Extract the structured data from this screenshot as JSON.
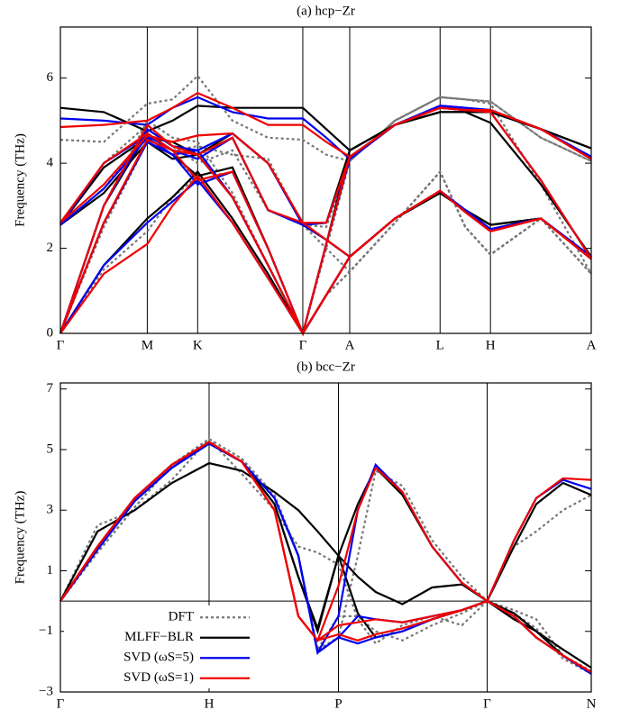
{
  "chart_data": [
    {
      "type": "line",
      "title": "(a) hcp−Zr",
      "ylabel": "Frequency (THz)",
      "x": [
        0,
        0.5,
        1,
        1.29,
        1.58,
        1.98,
        2.39,
        2.79,
        3.06,
        3.33,
        3.85,
        4.37,
        4.66,
        4.95,
        5.53,
        6.11
      ],
      "xlim": [
        0,
        6.11
      ],
      "xticks": [
        {
          "value": 0,
          "label": "Γ"
        },
        {
          "value": 1,
          "label": "M"
        },
        {
          "value": 1.58,
          "label": "K"
        },
        {
          "value": 2.79,
          "label": "Γ"
        },
        {
          "value": 3.33,
          "label": "A"
        },
        {
          "value": 4.37,
          "label": "L"
        },
        {
          "value": 4.95,
          "label": "H"
        },
        {
          "value": 6.11,
          "label": "A"
        }
      ],
      "ylim": [
        0,
        7.2
      ],
      "yticks": [
        0,
        2,
        4,
        6
      ],
      "xgrid": true,
      "series": [
        {
          "color": "#777777",
          "dash": "dotted",
          "branches": [
            [
              0,
              1.5,
              2.4,
              3.2,
              3.7,
              2.6,
              1.3,
              0,
              0.9,
              1.45,
              2.6,
              3.8,
              2.5,
              1.85,
              2.7,
              1.4
            ],
            [
              0,
              2.5,
              4.5,
              4.2,
              3.6,
              3.8,
              2.0,
              0,
              0.9,
              1.45,
              2.6,
              3.8,
              2.5,
              1.85,
              2.7,
              1.4
            ],
            [
              0,
              3.0,
              5.0,
              4.6,
              4.5,
              3.3,
              1.6,
              0,
              2.0,
              4.05,
              5.0,
              5.55,
              5.5,
              5.4,
              3.5,
              1.4
            ],
            [
              2.55,
              4.0,
              4.9,
              4.4,
              4.0,
              4.3,
              2.9,
              2.55,
              2.0,
              1.45,
              2.6,
              3.8,
              2.5,
              1.85,
              2.7,
              1.4
            ],
            [
              2.55,
              3.4,
              4.7,
              4.3,
              4.4,
              4.2,
              4.1,
              2.55,
              2.5,
              4.05,
              5.0,
              5.55,
              5.5,
              5.45,
              4.6,
              4.05
            ],
            [
              4.55,
              4.5,
              5.4,
              5.5,
              6.05,
              5.0,
              4.6,
              4.55,
              4.2,
              4.05,
              5.0,
              5.55,
              5.5,
              5.45,
              4.6,
              4.05
            ]
          ]
        },
        {
          "color": "#000000",
          "dash": "solid",
          "branches": [
            [
              0,
              1.6,
              2.7,
              3.2,
              3.8,
              2.7,
              1.4,
              0,
              0.9,
              1.8,
              2.7,
              3.3,
              2.9,
              2.55,
              2.7,
              1.8
            ],
            [
              0,
              2.6,
              4.5,
              4.2,
              3.7,
              3.9,
              2.0,
              0,
              0.9,
              1.8,
              2.7,
              3.3,
              2.9,
              2.55,
              2.7,
              1.8
            ],
            [
              0,
              3.0,
              4.7,
              4.3,
              4.2,
              3.2,
              1.6,
              0,
              2.1,
              4.3,
              4.9,
              5.2,
              5.2,
              4.95,
              3.5,
              1.8
            ],
            [
              2.55,
              3.9,
              4.6,
              4.5,
              4.2,
              4.6,
              2.9,
              2.55,
              2.2,
              1.8,
              2.7,
              3.3,
              2.9,
              2.55,
              2.7,
              1.8
            ],
            [
              2.55,
              3.3,
              4.5,
              4.1,
              4.2,
              4.7,
              4.0,
              2.55,
              2.6,
              4.3,
              4.9,
              5.2,
              5.2,
              5.2,
              4.8,
              4.35
            ],
            [
              5.3,
              5.2,
              4.75,
              5.0,
              5.35,
              5.3,
              5.3,
              5.3,
              4.8,
              4.3,
              4.9,
              5.2,
              5.2,
              5.2,
              4.8,
              4.35
            ]
          ]
        },
        {
          "color": "#0000ee",
          "dash": "solid",
          "branches": [
            [
              0,
              1.6,
              2.6,
              3.1,
              3.6,
              2.6,
              1.3,
              0,
              0.9,
              1.8,
              2.7,
              3.35,
              2.9,
              2.45,
              2.7,
              1.8
            ],
            [
              0,
              2.6,
              4.5,
              4.2,
              3.5,
              3.8,
              2.0,
              0,
              0.9,
              1.8,
              2.7,
              3.35,
              2.9,
              2.45,
              2.7,
              1.8
            ],
            [
              0,
              3.0,
              4.8,
              4.4,
              4.3,
              3.2,
              1.6,
              0,
              2.1,
              4.1,
              4.9,
              5.35,
              5.3,
              5.2,
              3.6,
              1.75
            ],
            [
              2.55,
              4.0,
              4.65,
              4.3,
              4.1,
              4.6,
              2.9,
              2.55,
              2.2,
              1.8,
              2.7,
              3.35,
              2.9,
              2.45,
              2.7,
              1.8
            ],
            [
              2.55,
              3.4,
              4.6,
              4.2,
              4.3,
              4.7,
              4.0,
              2.55,
              2.6,
              4.1,
              4.9,
              5.35,
              5.3,
              5.25,
              4.8,
              4.15
            ],
            [
              5.05,
              5.0,
              4.9,
              5.3,
              5.55,
              5.2,
              5.05,
              5.05,
              4.6,
              4.1,
              4.9,
              5.35,
              5.3,
              5.25,
              4.8,
              4.15
            ]
          ]
        },
        {
          "color": "#ee0000",
          "dash": "solid",
          "branches": [
            [
              0,
              1.4,
              2.1,
              3.0,
              3.7,
              2.6,
              1.3,
              0,
              0.9,
              1.8,
              2.7,
              3.35,
              2.85,
              2.4,
              2.7,
              1.75
            ],
            [
              0,
              2.6,
              4.55,
              4.3,
              3.6,
              3.8,
              2.0,
              0,
              0.9,
              1.8,
              2.7,
              3.35,
              2.85,
              2.4,
              2.7,
              1.75
            ],
            [
              0,
              3.0,
              4.9,
              4.4,
              4.2,
              3.2,
              1.6,
              0,
              2.1,
              4.15,
              4.9,
              5.3,
              5.25,
              5.2,
              3.6,
              1.75
            ],
            [
              2.6,
              4.0,
              4.7,
              4.3,
              4.2,
              4.6,
              2.9,
              2.6,
              2.2,
              1.8,
              2.7,
              3.35,
              2.85,
              2.4,
              2.7,
              1.75
            ],
            [
              2.6,
              3.5,
              4.65,
              4.5,
              4.65,
              4.7,
              4.0,
              2.6,
              2.6,
              4.15,
              4.9,
              5.3,
              5.25,
              5.25,
              4.8,
              4.1
            ],
            [
              4.85,
              4.9,
              5.0,
              5.3,
              5.65,
              5.3,
              4.9,
              4.9,
              4.5,
              4.15,
              4.9,
              5.3,
              5.25,
              5.25,
              4.8,
              4.1
            ]
          ]
        }
      ]
    },
    {
      "type": "line",
      "title": "(b) bcc−Zr",
      "ylabel": "Frequency (THz)",
      "x": [
        0,
        0.25,
        0.5,
        0.75,
        1,
        1.22,
        1.44,
        1.6,
        1.73,
        1.87,
        2.0,
        2.12,
        2.3,
        2.5,
        2.7,
        2.87,
        3.05,
        3.2,
        3.38,
        3.57
      ],
      "xlim": [
        0,
        3.57
      ],
      "xticks": [
        {
          "value": 0,
          "label": "Γ"
        },
        {
          "value": 1,
          "label": "H"
        },
        {
          "value": 1.87,
          "label": "P"
        },
        {
          "value": 2.87,
          "label": "Γ"
        },
        {
          "value": 3.57,
          "label": "N"
        }
      ],
      "ylim": [
        -3,
        7.2
      ],
      "yticks": [
        {
          "value": -3,
          "label": "−3"
        },
        {
          "value": -1,
          "label": "−1"
        },
        1,
        3,
        5,
        7
      ],
      "xgrid": true,
      "zero_line": true,
      "legend": "lower left",
      "series": [
        {
          "name": "DFT",
          "color": "#777777",
          "dash": "dotted",
          "branches": [
            [
              0,
              2.5,
              3.0,
              4.0,
              5.35,
              4.2,
              3.0,
              1.8,
              1.6,
              1.2,
              -0.6,
              -1.4,
              -0.8,
              -0.5,
              -0.8,
              0,
              -0.3,
              -0.6,
              -1.8,
              -2.3
            ],
            [
              0,
              1.6,
              3.1,
              4.5,
              5.35,
              4.7,
              3.5,
              1.5,
              -1.6,
              -1.2,
              1.5,
              4.3,
              3.8,
              2.0,
              0.8,
              0,
              1.8,
              2.3,
              3.0,
              3.5
            ],
            [
              0,
              1.6,
              3.1,
              4.5,
              5.35,
              4.7,
              3.5,
              1.5,
              -1.6,
              -0.5,
              -0.5,
              -1.0,
              -1.3,
              -0.8,
              -0.4,
              0,
              -0.4,
              -0.9,
              -1.9,
              -2.4
            ]
          ]
        },
        {
          "name": "MLFF−BLR",
          "color": "#000000",
          "dash": "solid",
          "branches": [
            [
              0,
              2.3,
              3.0,
              3.9,
              4.55,
              4.3,
              3.6,
              3.0,
              2.3,
              1.5,
              0.8,
              0.3,
              -0.1,
              0.45,
              0.55,
              0,
              -0.6,
              -1.0,
              -1.6,
              -2.2
            ],
            [
              0,
              1.8,
              3.4,
              4.5,
              5.2,
              4.6,
              3.2,
              0.8,
              -1.0,
              1.5,
              3.2,
              4.4,
              3.5,
              1.8,
              0.6,
              0,
              1.8,
              3.2,
              3.9,
              3.5
            ],
            [
              0,
              1.8,
              3.4,
              4.5,
              5.2,
              4.6,
              3.2,
              0.8,
              -0.9,
              1.5,
              -0.4,
              -1.2,
              -1.0,
              -0.6,
              -0.3,
              0,
              -0.4,
              -1.0,
              -1.8,
              -2.4
            ]
          ]
        },
        {
          "name": "SVD (ωS=5)",
          "color": "#0000ee",
          "dash": "solid",
          "branches": [
            [
              0,
              1.7,
              3.3,
              4.4,
              5.2,
              4.6,
              3.4,
              1.5,
              -1.7,
              -1.2,
              -1.4,
              -1.2,
              -1.0,
              -0.6,
              -0.3,
              0,
              2.0,
              3.4,
              4.0,
              3.7
            ],
            [
              0,
              1.7,
              3.3,
              4.4,
              5.2,
              4.6,
              3.4,
              1.5,
              -1.7,
              -0.5,
              3.0,
              4.5,
              3.6,
              1.8,
              0.6,
              0,
              -0.5,
              -1.2,
              -1.8,
              -2.4
            ],
            [
              0,
              1.7,
              3.3,
              4.4,
              5.2,
              4.6,
              3.4,
              1.5,
              -1.7,
              -1.2,
              -0.5,
              -0.6,
              -0.7,
              -0.5,
              -0.3,
              0,
              -0.5,
              -1.2,
              -1.8,
              -2.4
            ]
          ]
        },
        {
          "name": "SVD (ωS=1)",
          "color": "#ee0000",
          "dash": "solid",
          "branches": [
            [
              0,
              1.8,
              3.4,
              4.5,
              5.25,
              4.6,
              3.0,
              -0.5,
              -1.3,
              0.5,
              3.0,
              4.4,
              3.6,
              1.8,
              0.6,
              0,
              2.0,
              3.4,
              4.05,
              4.0
            ],
            [
              0,
              1.8,
              3.4,
              4.5,
              5.25,
              4.6,
              3.0,
              -0.5,
              -1.3,
              -1.1,
              -1.3,
              -1.1,
              -0.9,
              -0.6,
              -0.3,
              0,
              -0.5,
              -1.2,
              -1.8,
              -2.35
            ],
            [
              0,
              1.8,
              3.4,
              4.5,
              5.25,
              4.6,
              3.0,
              -0.5,
              -1.3,
              -0.8,
              -0.7,
              -0.6,
              -0.7,
              -0.5,
              -0.3,
              0,
              -0.5,
              -1.2,
              -1.8,
              -2.35
            ]
          ]
        }
      ]
    }
  ]
}
